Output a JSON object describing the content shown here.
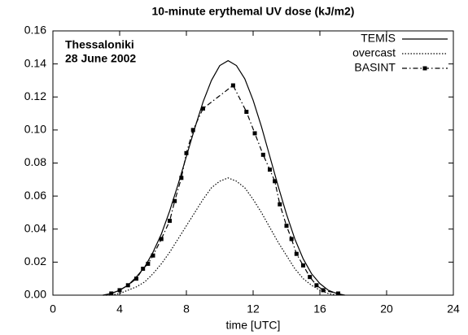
{
  "chart_data": {
    "type": "line",
    "title": "10-minute erythemal UV dose (kJ/m2)",
    "xlabel": "time [UTC]",
    "annotations": [
      "Thessaloniki",
      "28 June 2002"
    ],
    "xlim": [
      0,
      24
    ],
    "xticks": [
      0,
      4,
      8,
      12,
      16,
      20,
      24
    ],
    "ylim": [
      0,
      0.16
    ],
    "yticks": [
      {
        "value": 0,
        "label": "0.00"
      },
      0.02,
      0.04,
      0.06,
      0.08,
      {
        "value": 0.1,
        "label": "0.10"
      },
      0.12,
      0.14,
      0.16
    ],
    "legend": "upper right",
    "series": [
      {
        "name": "TEMIS",
        "color": "#000000",
        "style": "solid",
        "x": [
          3,
          3.5,
          4,
          4.5,
          5,
          5.5,
          6,
          6.5,
          7,
          7.5,
          8,
          8.5,
          9,
          9.5,
          10,
          10.5,
          11,
          11.5,
          12,
          12.5,
          13,
          13.5,
          14,
          14.5,
          15,
          15.5,
          16,
          16.5,
          17,
          17.5
        ],
        "values": [
          0.0,
          0.001,
          0.003,
          0.006,
          0.011,
          0.017,
          0.026,
          0.037,
          0.051,
          0.067,
          0.084,
          0.101,
          0.117,
          0.13,
          0.139,
          0.142,
          0.139,
          0.131,
          0.118,
          0.102,
          0.084,
          0.066,
          0.049,
          0.034,
          0.022,
          0.013,
          0.007,
          0.003,
          0.001,
          0.0
        ]
      },
      {
        "name": "overcast",
        "color": "#000000",
        "style": "dotted",
        "x": [
          3,
          3.5,
          4,
          4.5,
          5,
          5.5,
          6,
          6.5,
          7,
          7.5,
          8,
          8.5,
          9,
          9.5,
          10,
          10.5,
          11,
          11.5,
          12,
          12.5,
          13,
          13.5,
          14,
          14.5,
          15,
          15.5,
          16,
          16.5,
          17
        ],
        "values": [
          0.0,
          0.0,
          0.001,
          0.003,
          0.005,
          0.008,
          0.013,
          0.019,
          0.026,
          0.034,
          0.042,
          0.05,
          0.058,
          0.065,
          0.069,
          0.071,
          0.069,
          0.065,
          0.058,
          0.05,
          0.041,
          0.032,
          0.024,
          0.016,
          0.01,
          0.006,
          0.003,
          0.001,
          0.0
        ]
      },
      {
        "name": "BASINT",
        "color": "#000000",
        "style": "dashdot",
        "marker": "square",
        "x": [
          3.5,
          4,
          4.5,
          5,
          5.4,
          5.7,
          6,
          6.5,
          7,
          7.3,
          7.7,
          8,
          8.4,
          9,
          10.8,
          11.6,
          12.1,
          12.6,
          13,
          13.3,
          13.6,
          14,
          14.3,
          14.6,
          15,
          15.4,
          15.8,
          16.2,
          17.1
        ],
        "values": [
          0.001,
          0.003,
          0.006,
          0.01,
          0.016,
          0.019,
          0.024,
          0.034,
          0.045,
          0.057,
          0.071,
          0.086,
          0.1,
          0.113,
          0.127,
          0.111,
          0.098,
          0.085,
          0.076,
          0.069,
          0.055,
          0.042,
          0.034,
          0.025,
          0.018,
          0.011,
          0.006,
          0.003,
          0.001
        ]
      }
    ]
  }
}
